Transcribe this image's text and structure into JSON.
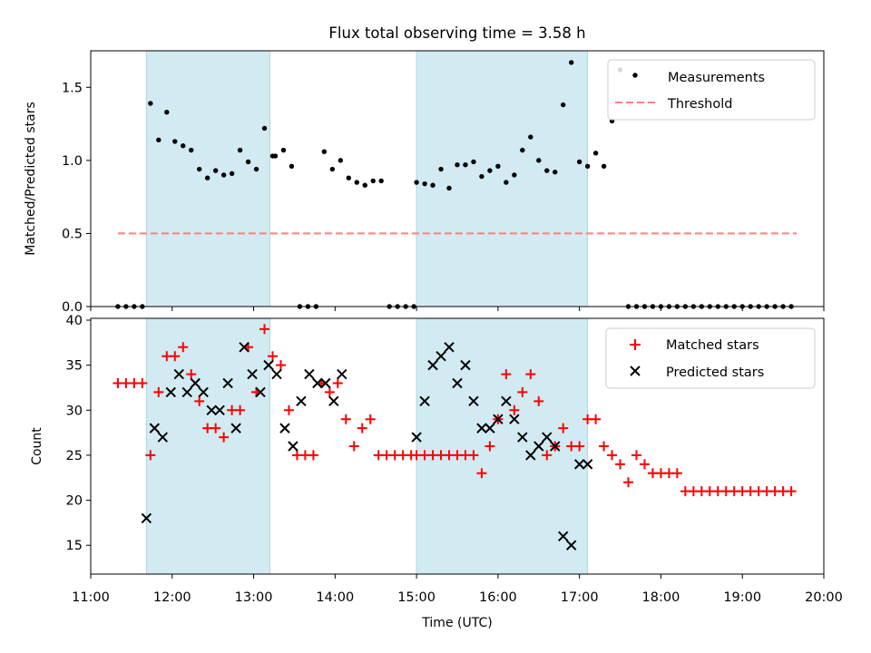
{
  "colors": {
    "shade": "#add8e6",
    "measurement": "#000000",
    "threshold": "#ff7f7f",
    "matched": "#ff0000",
    "predicted": "#000000"
  },
  "chart_data": [
    {
      "type": "scatter",
      "title": "Flux total observing time = 3.58 h",
      "xlabel": "",
      "ylabel": "Matched/Predicted stars",
      "xlim": [
        "11:00",
        "20:00"
      ],
      "ylim": [
        0,
        1.75
      ],
      "yticks": [
        "0.0",
        "0.5",
        "1.0",
        "1.5"
      ],
      "shaded_intervals": [
        [
          "11:41",
          "13:12"
        ],
        [
          "15:00",
          "17:06"
        ]
      ],
      "legend": {
        "position": "top-right",
        "entries": [
          "Measurements",
          "Threshold"
        ]
      },
      "threshold": {
        "name": "Threshold",
        "value": 0.5,
        "x_range": [
          "11:20",
          "19:40"
        ]
      },
      "series": [
        {
          "name": "Measurements",
          "x": [
            "11:20",
            "11:26",
            "11:32",
            "11:38",
            "11:44",
            "11:50",
            "11:56",
            "12:02",
            "12:08",
            "12:14",
            "12:20",
            "12:26",
            "12:32",
            "12:38",
            "12:44",
            "12:50",
            "12:56",
            "13:02",
            "13:08",
            "13:14",
            "13:16",
            "13:22",
            "13:28",
            "13:34",
            "13:40",
            "13:46",
            "13:52",
            "13:58",
            "14:04",
            "14:10",
            "14:16",
            "14:22",
            "14:28",
            "14:34",
            "14:40",
            "14:46",
            "14:52",
            "14:58",
            "15:00",
            "15:06",
            "15:12",
            "15:18",
            "15:24",
            "15:30",
            "15:36",
            "15:42",
            "15:48",
            "15:54",
            "16:00",
            "16:06",
            "16:12",
            "16:18",
            "16:24",
            "16:30",
            "16:36",
            "16:42",
            "16:48",
            "16:54",
            "17:00",
            "17:06",
            "17:12",
            "17:18",
            "17:24",
            "17:30",
            "17:36",
            "17:42",
            "17:48",
            "17:54",
            "18:00",
            "18:06",
            "18:12",
            "18:18",
            "18:24",
            "18:30",
            "18:36",
            "18:42",
            "18:48",
            "18:54",
            "19:00",
            "19:06",
            "19:12",
            "19:18",
            "19:24",
            "19:30",
            "19:36"
          ],
          "y": [
            0.0,
            0.0,
            0.0,
            0.0,
            1.39,
            1.14,
            1.33,
            1.13,
            1.1,
            1.07,
            0.94,
            0.88,
            0.93,
            0.9,
            0.91,
            1.07,
            0.99,
            0.94,
            1.22,
            1.03,
            1.03,
            1.07,
            0.96,
            0.0,
            0.0,
            0.0,
            1.06,
            0.94,
            1.0,
            0.88,
            0.85,
            0.83,
            0.86,
            0.86,
            0.0,
            0.0,
            0.0,
            0.0,
            0.85,
            0.84,
            0.83,
            0.94,
            0.81,
            0.97,
            0.97,
            0.99,
            0.89,
            0.93,
            0.96,
            0.85,
            0.9,
            1.07,
            1.16,
            1.0,
            0.93,
            0.92,
            1.38,
            1.67,
            0.99,
            0.96,
            1.05,
            0.96,
            1.27,
            1.62,
            0.0,
            0.0,
            0.0,
            0.0,
            0.0,
            0.0,
            0.0,
            0.0,
            0.0,
            0.0,
            0.0,
            0.0,
            0.0,
            0.0,
            0.0,
            0.0,
            0.0,
            0.0,
            0.0,
            0.0,
            0.0
          ]
        }
      ]
    },
    {
      "type": "scatter",
      "title": "",
      "xlabel": "Time (UTC)",
      "ylabel": "Count",
      "xlim": [
        "11:00",
        "20:00"
      ],
      "ylim": [
        11.8,
        40.2
      ],
      "yticks": [
        "15",
        "20",
        "25",
        "30",
        "35",
        "40"
      ],
      "xticks": [
        "11:00",
        "12:00",
        "13:00",
        "14:00",
        "15:00",
        "16:00",
        "17:00",
        "18:00",
        "19:00",
        "20:00"
      ],
      "shaded_intervals": [
        [
          "11:41",
          "13:12"
        ],
        [
          "15:00",
          "17:06"
        ]
      ],
      "legend": {
        "position": "top-right",
        "entries": [
          "Matched stars",
          "Predicted stars"
        ]
      },
      "series": [
        {
          "name": "Matched stars",
          "marker": "+",
          "x": [
            "11:20",
            "11:26",
            "11:32",
            "11:38",
            "11:44",
            "11:50",
            "11:56",
            "12:02",
            "12:08",
            "12:14",
            "12:20",
            "12:26",
            "12:32",
            "12:38",
            "12:44",
            "12:50",
            "12:56",
            "13:02",
            "13:08",
            "13:14",
            "13:20",
            "13:26",
            "13:32",
            "13:38",
            "13:44",
            "13:50",
            "13:56",
            "14:02",
            "14:08",
            "14:14",
            "14:20",
            "14:26",
            "14:32",
            "14:38",
            "14:44",
            "14:50",
            "14:56",
            "15:00",
            "15:06",
            "15:12",
            "15:18",
            "15:24",
            "15:30",
            "15:36",
            "15:42",
            "15:48",
            "15:54",
            "16:00",
            "16:06",
            "16:12",
            "16:18",
            "16:24",
            "16:30",
            "16:36",
            "16:42",
            "16:48",
            "16:54",
            "17:00",
            "17:06",
            "17:12",
            "17:18",
            "17:24",
            "17:30",
            "17:36",
            "17:42",
            "17:48",
            "17:54",
            "18:00",
            "18:06",
            "18:12",
            "18:18",
            "18:24",
            "18:30",
            "18:36",
            "18:42",
            "18:48",
            "18:54",
            "19:00",
            "19:06",
            "19:12",
            "19:18",
            "19:24",
            "19:30",
            "19:36"
          ],
          "y": [
            33,
            33,
            33,
            33,
            25,
            32,
            36,
            36,
            37,
            34,
            31,
            28,
            28,
            27,
            30,
            30,
            37,
            32,
            39,
            36,
            35,
            30,
            25,
            25,
            25,
            33,
            32,
            33,
            29,
            26,
            28,
            29,
            25,
            25,
            25,
            25,
            25,
            25,
            25,
            25,
            25,
            25,
            25,
            25,
            25,
            23,
            26,
            29,
            34,
            30,
            32,
            34,
            31,
            25,
            26,
            28,
            26,
            26,
            29,
            29,
            26,
            25,
            24,
            22,
            25,
            24,
            23,
            23,
            23,
            23,
            21,
            21,
            21,
            21,
            21,
            21,
            21,
            21,
            21,
            21,
            21,
            21,
            21,
            21
          ]
        },
        {
          "name": "Predicted stars",
          "marker": "x",
          "x": [
            "11:41",
            "11:47",
            "11:53",
            "11:59",
            "12:05",
            "12:11",
            "12:17",
            "12:23",
            "12:29",
            "12:35",
            "12:41",
            "12:47",
            "12:53",
            "12:59",
            "13:05",
            "13:11",
            "13:17",
            "13:23",
            "13:29",
            "13:35",
            "13:41",
            "13:47",
            "13:53",
            "13:59",
            "14:05",
            "15:00",
            "15:06",
            "15:12",
            "15:18",
            "15:24",
            "15:30",
            "15:36",
            "15:42",
            "15:48",
            "15:54",
            "16:00",
            "16:06",
            "16:12",
            "16:18",
            "16:24",
            "16:30",
            "16:36",
            "16:42",
            "16:48",
            "16:54",
            "17:00",
            "17:06"
          ],
          "y": [
            18,
            28,
            27,
            32,
            34,
            32,
            33,
            32,
            30,
            30,
            33,
            28,
            37,
            34,
            32,
            35,
            34,
            28,
            26,
            31,
            34,
            33,
            33,
            31,
            34,
            27,
            31,
            35,
            36,
            37,
            33,
            35,
            31,
            28,
            28,
            29,
            31,
            29,
            27,
            25,
            26,
            27,
            26,
            16,
            15,
            24,
            24
          ]
        }
      ]
    }
  ]
}
